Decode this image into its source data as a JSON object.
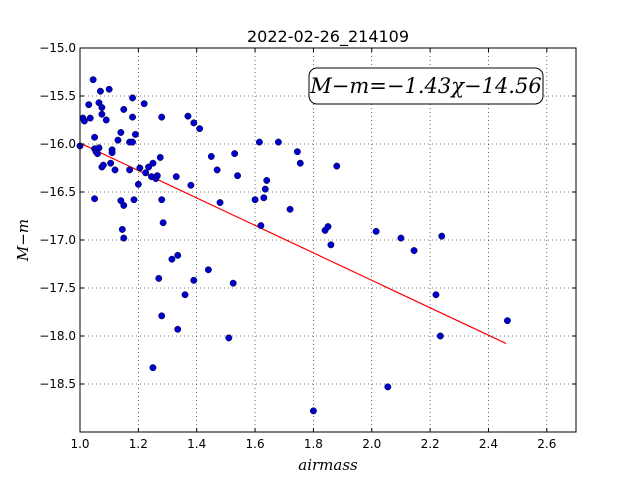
{
  "chart_data": {
    "type": "scatter",
    "title": "2022-02-26_214109",
    "xlabel": "airmass",
    "ylabel": "M−m",
    "xlim": [
      1.0,
      2.7
    ],
    "ylim": [
      -19.0,
      -15.0
    ],
    "y_inverted": true,
    "grid": true,
    "x_ticks": [
      1.0,
      1.2,
      1.4,
      1.6,
      1.8,
      2.0,
      2.2,
      2.4,
      2.6
    ],
    "x_tick_labels": [
      "1.0",
      "1.2",
      "1.4",
      "1.6",
      "1.8",
      "2.0",
      "2.2",
      "2.4",
      "2.6"
    ],
    "y_ticks": [
      -15.0,
      -15.5,
      -16.0,
      -16.5,
      -17.0,
      -17.5,
      -18.0,
      -18.5
    ],
    "y_tick_labels": [
      "−15.0",
      "−15.5",
      "−16.0",
      "−16.5",
      "−17.0",
      "−17.5",
      "−18.0",
      "−18.5"
    ],
    "annotation": "M−m=−1.43χ−14.56",
    "fit": {
      "slope": -1.43,
      "intercept": -14.56,
      "x_range": [
        1.0,
        2.46
      ],
      "color": "#ff0000"
    },
    "point_color": "#0000cc",
    "series": [
      {
        "points": [
          [
            1.0,
            -16.02
          ],
          [
            1.01,
            -15.73
          ],
          [
            1.015,
            -15.76
          ],
          [
            1.03,
            -15.59
          ],
          [
            1.035,
            -15.73
          ],
          [
            1.045,
            -15.33
          ],
          [
            1.05,
            -16.05
          ],
          [
            1.05,
            -15.93
          ],
          [
            1.055,
            -16.08
          ],
          [
            1.06,
            -16.1
          ],
          [
            1.065,
            -16.04
          ],
          [
            1.065,
            -15.57
          ],
          [
            1.07,
            -15.45
          ],
          [
            1.075,
            -15.62
          ],
          [
            1.075,
            -15.69
          ],
          [
            1.05,
            -16.57
          ],
          [
            1.075,
            -16.24
          ],
          [
            1.08,
            -16.22
          ],
          [
            1.09,
            -15.75
          ],
          [
            1.1,
            -15.43
          ],
          [
            1.105,
            -16.2
          ],
          [
            1.11,
            -16.06
          ],
          [
            1.11,
            -16.09
          ],
          [
            1.12,
            -16.27
          ],
          [
            1.13,
            -15.96
          ],
          [
            1.14,
            -15.88
          ],
          [
            1.15,
            -15.64
          ],
          [
            1.14,
            -16.59
          ],
          [
            1.15,
            -16.64
          ],
          [
            1.145,
            -16.89
          ],
          [
            1.15,
            -16.98
          ],
          [
            1.17,
            -15.98
          ],
          [
            1.17,
            -16.27
          ],
          [
            1.18,
            -15.98
          ],
          [
            1.18,
            -15.52
          ],
          [
            1.18,
            -15.72
          ],
          [
            1.185,
            -16.58
          ],
          [
            1.19,
            -15.9
          ],
          [
            1.2,
            -16.42
          ],
          [
            1.205,
            -16.25
          ],
          [
            1.22,
            -15.58
          ],
          [
            1.225,
            -16.3
          ],
          [
            1.235,
            -16.24
          ],
          [
            1.245,
            -16.34
          ],
          [
            1.25,
            -16.2
          ],
          [
            1.26,
            -16.36
          ],
          [
            1.265,
            -16.33
          ],
          [
            1.27,
            -17.4
          ],
          [
            1.275,
            -16.14
          ],
          [
            1.28,
            -15.72
          ],
          [
            1.28,
            -16.58
          ],
          [
            1.285,
            -16.82
          ],
          [
            1.28,
            -17.79
          ],
          [
            1.25,
            -18.33
          ],
          [
            1.315,
            -17.2
          ],
          [
            1.33,
            -16.34
          ],
          [
            1.335,
            -17.16
          ],
          [
            1.335,
            -17.93
          ],
          [
            1.36,
            -17.57
          ],
          [
            1.37,
            -15.71
          ],
          [
            1.38,
            -16.43
          ],
          [
            1.39,
            -15.78
          ],
          [
            1.39,
            -17.42
          ],
          [
            1.41,
            -15.84
          ],
          [
            1.44,
            -17.31
          ],
          [
            1.45,
            -16.13
          ],
          [
            1.47,
            -16.27
          ],
          [
            1.48,
            -16.61
          ],
          [
            1.51,
            -18.02
          ],
          [
            1.525,
            -17.45
          ],
          [
            1.53,
            -16.1
          ],
          [
            1.54,
            -16.33
          ],
          [
            1.6,
            -16.58
          ],
          [
            1.615,
            -15.98
          ],
          [
            1.62,
            -16.85
          ],
          [
            1.63,
            -16.56
          ],
          [
            1.635,
            -16.47
          ],
          [
            1.64,
            -16.38
          ],
          [
            1.68,
            -15.98
          ],
          [
            1.72,
            -16.68
          ],
          [
            1.745,
            -16.08
          ],
          [
            1.755,
            -16.2
          ],
          [
            1.8,
            -18.78
          ],
          [
            1.84,
            -16.9
          ],
          [
            1.85,
            -16.86
          ],
          [
            1.86,
            -17.05
          ],
          [
            1.88,
            -16.23
          ],
          [
            2.015,
            -16.91
          ],
          [
            2.055,
            -18.53
          ],
          [
            2.1,
            -16.98
          ],
          [
            2.145,
            -17.11
          ],
          [
            2.22,
            -17.57
          ],
          [
            2.235,
            -18.0
          ],
          [
            2.24,
            -16.96
          ],
          [
            2.465,
            -17.84
          ]
        ]
      }
    ]
  }
}
